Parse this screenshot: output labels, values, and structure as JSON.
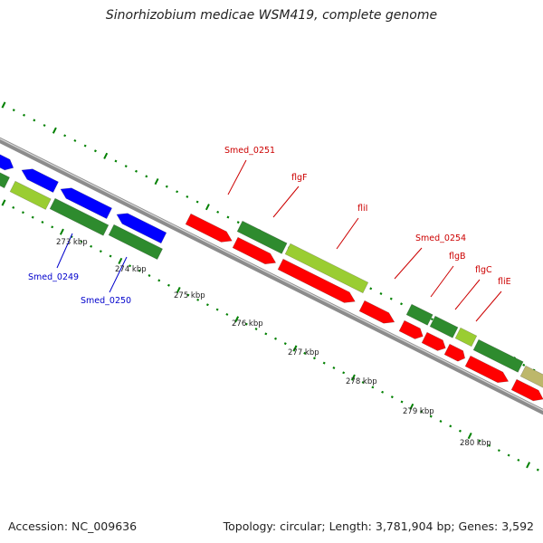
{
  "title": "Sinorhizobium medicae WSM419, complete genome",
  "footer": {
    "accession": "Accession: NC_009636",
    "summary": "Topology: circular; Length: 3,781,904 bp; Genes: 3,592"
  },
  "colors": {
    "forward_cds": "#ff0000",
    "reverse_cds": "#0000ff",
    "gene_dark_green": "#2e8b2e",
    "gene_light_green": "#9acd32",
    "gene_tan": "#bdb76b",
    "backbone": "#8c8c8c",
    "tick_green": "#008000",
    "label_red": "#cc0000",
    "label_blue": "#0000cc"
  },
  "ticks": {
    "labels": [
      "273 kbp",
      "274 kbp",
      "275 kbp",
      "276 kbp",
      "277 kbp",
      "278 kbp",
      "279 kbp",
      "280 kbp"
    ]
  },
  "gene_labels": {
    "above": [
      "Smed_0251",
      "flgF",
      "fliI",
      "Smed_0254",
      "flgB",
      "flgC",
      "fliE"
    ],
    "below": [
      "Smed_0249",
      "Smed_0250"
    ]
  }
}
